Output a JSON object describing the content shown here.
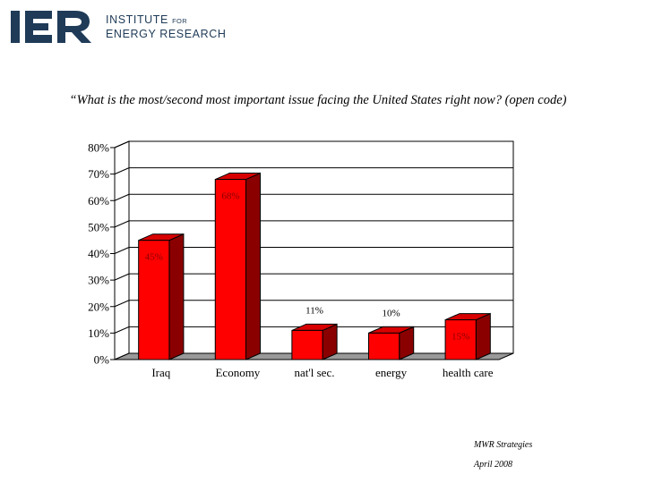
{
  "header": {
    "logo_letters": "IER",
    "logo_line1_main": "INSTITUTE ",
    "logo_line1_small": "FOR",
    "logo_line2": "ENERGY RESEARCH",
    "brand_color": "#1f3b57",
    "accent_color": "#1f3b57"
  },
  "chart_data": {
    "type": "bar",
    "title": "“What is the most/second most important issue facing the United States right now? (open code)",
    "categories": [
      "Iraq",
      "Economy",
      "nat'l sec.",
      "energy",
      "health care"
    ],
    "values": [
      45,
      68,
      11,
      10,
      15
    ],
    "value_labels": [
      "45%",
      "68%",
      "11%",
      "10%",
      "15%"
    ],
    "label_inside": [
      true,
      true,
      false,
      false,
      true
    ],
    "y_ticks": [
      "0%",
      "10%",
      "20%",
      "30%",
      "40%",
      "50%",
      "60%",
      "70%",
      "80%"
    ],
    "ylim": [
      0,
      80
    ],
    "grid": true,
    "three_d": true,
    "bar_color": "#ff0000",
    "bar_side_color": "#8a0000",
    "bar_top_color": "#d80000",
    "floor_color": "#999999"
  },
  "footer": {
    "source": "MWR Strategies",
    "date": "April 2008"
  }
}
